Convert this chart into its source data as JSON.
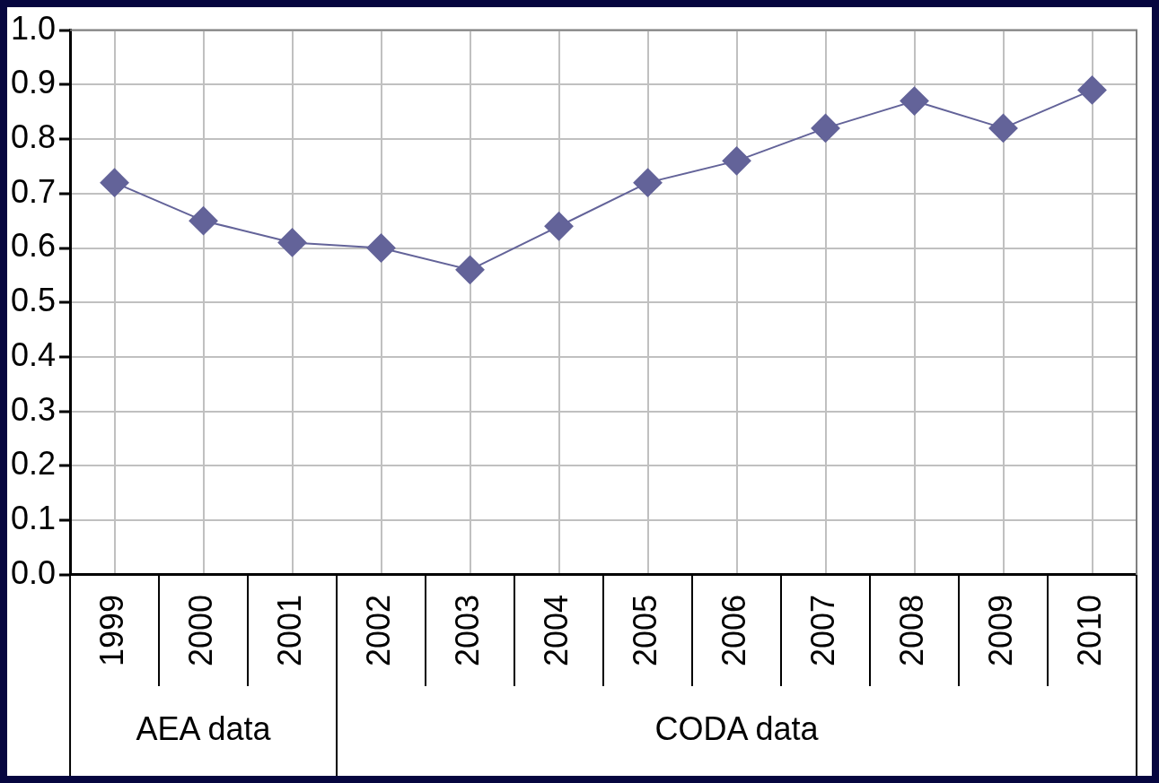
{
  "chart_data": {
    "type": "line",
    "categories": [
      "1999",
      "2000",
      "2001",
      "2002",
      "2003",
      "2004",
      "2005",
      "2006",
      "2007",
      "2008",
      "2009",
      "2010"
    ],
    "series": [
      {
        "color": "#636399",
        "values": [
          0.72,
          0.65,
          0.61,
          0.6,
          0.56,
          0.64,
          0.72,
          0.76,
          0.82,
          0.87,
          0.82,
          0.89
        ]
      }
    ],
    "ylim": [
      0,
      1
    ],
    "yticks": [
      {
        "value": 0,
        "label": "0.0"
      },
      {
        "value": 0.1,
        "label": "0.1"
      },
      {
        "value": 0.2,
        "label": "0.2"
      },
      {
        "value": 0.3,
        "label": "0.3"
      },
      {
        "value": 0.4,
        "label": "0.4"
      },
      {
        "value": 0.5,
        "label": "0.5"
      },
      {
        "value": 0.6,
        "label": "0.6"
      },
      {
        "value": 0.7,
        "label": "0.7"
      },
      {
        "value": 0.8,
        "label": "0.8"
      },
      {
        "value": 0.9,
        "label": "0.9"
      },
      {
        "value": 1,
        "label": "1.0"
      }
    ],
    "grid": true,
    "marker": "diamond",
    "annotations": [
      "AEA data",
      "CODA data"
    ]
  }
}
